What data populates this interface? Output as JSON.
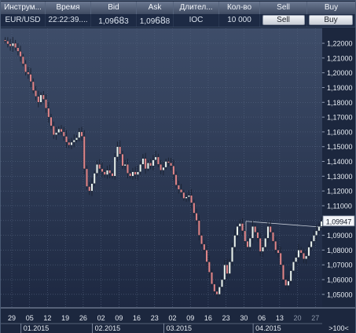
{
  "columns": [
    "Инструм...",
    "Время",
    "Bid",
    "Ask",
    "Длител...",
    "Кол-во",
    "Sell",
    "Buy"
  ],
  "row": {
    "instrument": "EUR/USD",
    "time": "22:22:39....",
    "bid": {
      "prefix": "1,09",
      "big": "68",
      "suffix": "3"
    },
    "ask": {
      "prefix": "1,09",
      "big": "68",
      "suffix": "8"
    },
    "duration": "IOC",
    "quantity": "10 000",
    "sell_label": "Sell",
    "buy_label": "Buy"
  },
  "chart_data": {
    "type": "candlestick",
    "symbol": "EUR/USD",
    "ylim": [
      1.043,
      1.228
    ],
    "y_ticks": [
      "1,22000",
      "1,21000",
      "1,20000",
      "1,19000",
      "1,18000",
      "1,17000",
      "1,16000",
      "1,15000",
      "1,14000",
      "1,13000",
      "1,12000",
      "1,11000",
      "1,10000",
      "1,09000",
      "1,08000",
      "1,07000",
      "1,06000",
      "1,05000"
    ],
    "y_tick_values": [
      1.22,
      1.21,
      1.2,
      1.19,
      1.18,
      1.17,
      1.16,
      1.15,
      1.14,
      1.13,
      1.12,
      1.11,
      1.1,
      1.09,
      1.08,
      1.07,
      1.06,
      1.05
    ],
    "x_day_labels": [
      "29",
      "05",
      "12",
      "19",
      "26",
      "02",
      "09",
      "16",
      "23",
      "02",
      "09",
      "16",
      "23",
      "30",
      "06",
      "13",
      "20",
      "27"
    ],
    "x_month_labels": [
      "01.2015",
      "02.2015",
      "03.2015",
      "04.2015"
    ],
    "zoom_label": ">100<",
    "current_price_label": "1,09947",
    "current_price": 1.09947,
    "bull_color": "#e9f2ee",
    "bear_color": "#e1868a",
    "closes": [
      1.2215,
      1.2195,
      1.218,
      1.22,
      1.217,
      1.2145,
      1.211,
      1.206,
      1.2005,
      1.199,
      1.194,
      1.188,
      1.184,
      1.18,
      1.185,
      1.182,
      1.176,
      1.17,
      1.164,
      1.158,
      1.1595,
      1.162,
      1.16,
      1.157,
      1.153,
      1.151,
      1.153,
      1.1545,
      1.156,
      1.16,
      1.157,
      1.135,
      1.123,
      1.12,
      1.125,
      1.132,
      1.138,
      1.135,
      1.133,
      1.131,
      1.134,
      1.132,
      1.13,
      1.143,
      1.15,
      1.145,
      1.137,
      1.138,
      1.132,
      1.13,
      1.133,
      1.131,
      1.133,
      1.138,
      1.142,
      1.135,
      1.139,
      1.137,
      1.141,
      1.143,
      1.138,
      1.134,
      1.136,
      1.14,
      1.139,
      1.137,
      1.131,
      1.124,
      1.121,
      1.119,
      1.115,
      1.116,
      1.117,
      1.112,
      1.105,
      1.1,
      1.09,
      1.084,
      1.08,
      1.072,
      1.065,
      1.057,
      1.052,
      1.05,
      1.055,
      1.06,
      1.07,
      1.064,
      1.072,
      1.082,
      1.09,
      1.096,
      1.098,
      1.093,
      1.086,
      1.082,
      1.088,
      1.096,
      1.092,
      1.088,
      1.079,
      1.082,
      1.088,
      1.096,
      1.092,
      1.086,
      1.08,
      1.078,
      1.07,
      1.06,
      1.056,
      1.059,
      1.066,
      1.072,
      1.075,
      1.08,
      1.078,
      1.074,
      1.076,
      1.082,
      1.086,
      1.09,
      1.093,
      1.096,
      1.0995
    ]
  }
}
